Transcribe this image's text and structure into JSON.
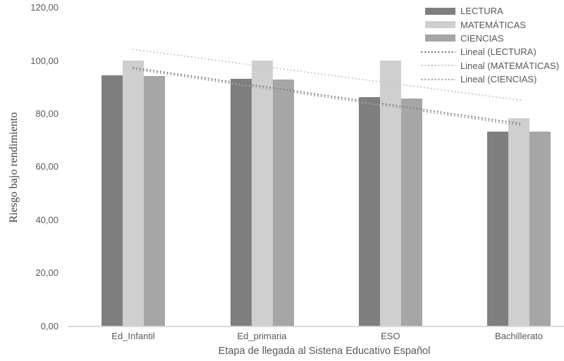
{
  "chart_data": {
    "type": "bar",
    "title": "",
    "categories": [
      "Ed_Infantil",
      "Ed_primaria",
      "ESO",
      "Bachillerato"
    ],
    "series": [
      {
        "name": "LECTURA",
        "color": "#7f7f7f",
        "values": [
          94.6,
          93.3,
          86.2,
          73.3
        ]
      },
      {
        "name": "MATEMÁTICAS",
        "color": "#cfcfcf",
        "values": [
          100.0,
          100.0,
          100.0,
          78.4
        ]
      },
      {
        "name": "CIENCIAS",
        "color": "#a6a6a6",
        "values": [
          94.3,
          93.0,
          85.8,
          73.2
        ]
      }
    ],
    "trendlines": [
      {
        "name": "Lineal (LECTURA)",
        "color": "#7f7f7f",
        "start": 97.4,
        "end": 76.2
      },
      {
        "name": "Lineal (MATEMÁTICAS)",
        "color": "#c9c9c9",
        "start": 104.3,
        "end": 85.0
      },
      {
        "name": "Lineal (CIENCIAS)",
        "color": "#a6a6a6",
        "start": 96.8,
        "end": 75.5
      }
    ],
    "xlabel": "Etapa de llegada al Sistena Educativo Español",
    "ylabel": "Riesgo bajo rendimiento",
    "ylim": [
      0,
      120
    ],
    "ytick_step": 20,
    "ytick_labels": [
      "0,00",
      "20,00",
      "40,00",
      "60,00",
      "80,00",
      "100,00",
      "120,00"
    ],
    "grid": false,
    "legend_position": "top-right"
  },
  "colors": {
    "axis_line": "#d9d9d9",
    "tick_text": "#595959",
    "axis_title_text": "#595959",
    "y_title_text": "#404040"
  }
}
